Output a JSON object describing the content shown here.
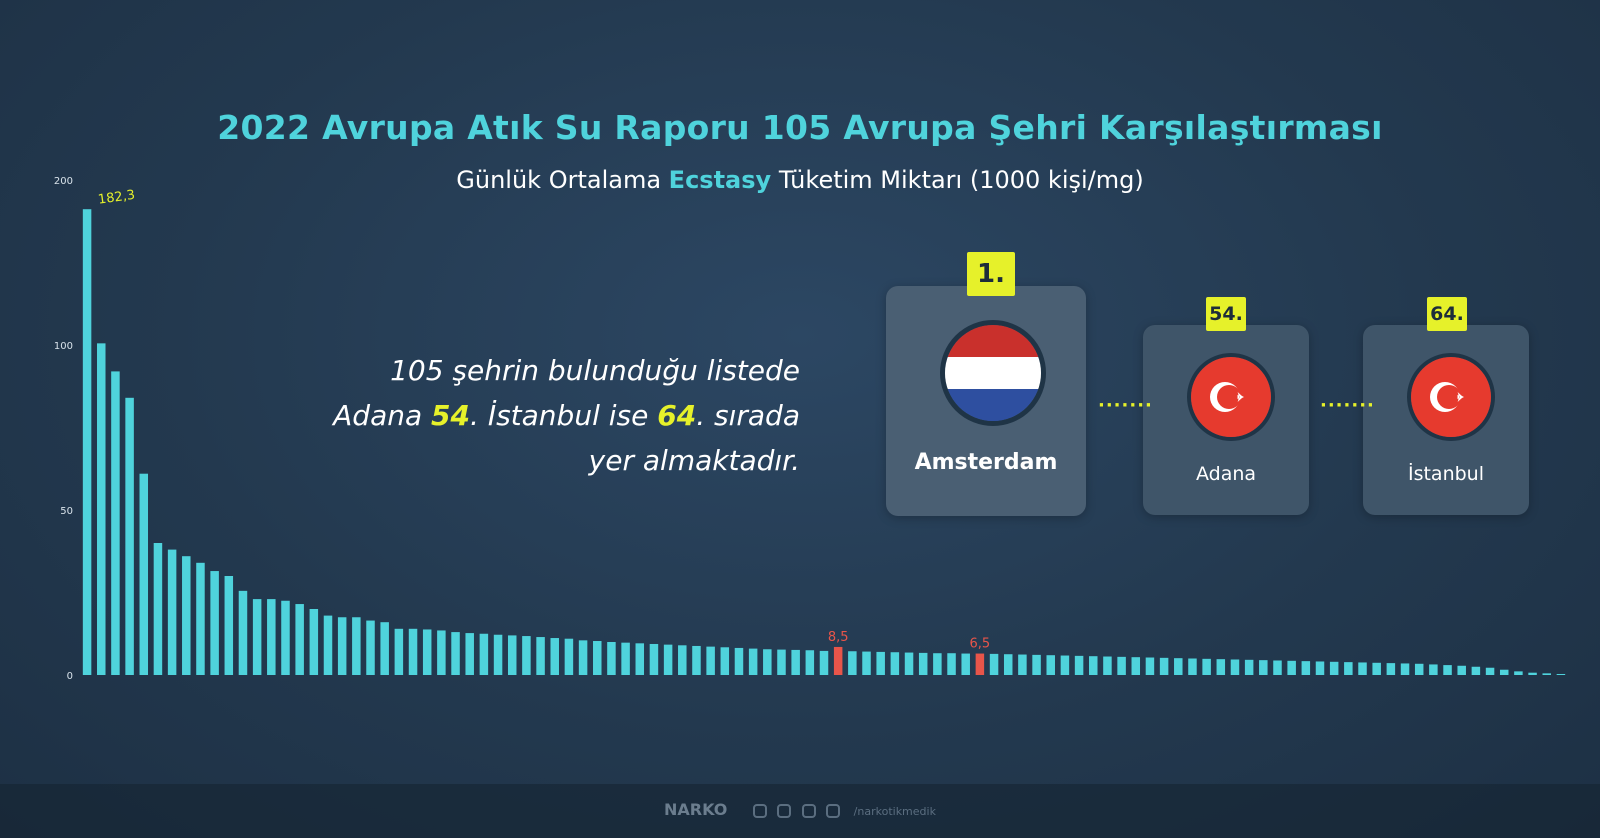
{
  "header": {
    "title": "2022 Avrupa Atık Su Raporu 105 Avrupa Şehri Karşılaştırması",
    "subtitle_pre": "Günlük Ortalama ",
    "subtitle_hl": "Ecstasy",
    "subtitle_post": " Tüketim Miktarı (1000 kişi/mg)"
  },
  "info": {
    "line1": "105 şehrin bulunduğu listede",
    "line2_a": "Adana ",
    "line2_b": "54",
    "line2_c": ". İstanbul ise ",
    "line2_d": "64",
    "line2_e": ". sırada",
    "line3": "yer almaktadır."
  },
  "cards": [
    {
      "rank": "1.",
      "city": "Amsterdam",
      "flag": "netherlands-flag-icon"
    },
    {
      "rank": "54.",
      "city": "Adana",
      "flag": "turkey-flag-icon"
    },
    {
      "rank": "64.",
      "city": "İstanbul",
      "flag": "turkey-flag-icon"
    }
  ],
  "dots": "·······",
  "footer": {
    "logo": "NARKO",
    "handle": "/narkotikmedik"
  },
  "colors": {
    "bar": "#4fd3dc",
    "highlight": "#e8554a",
    "accent_yellow": "#e6f12a",
    "title": "#4fd3dc"
  },
  "chart_data": {
    "type": "bar",
    "ylim": [
      0,
      200
    ],
    "yticks": [
      0,
      50,
      100,
      200
    ],
    "bar_count": 105,
    "values": [
      182.3,
      101,
      92,
      84,
      61,
      40,
      38,
      36,
      34,
      31.5,
      30,
      25.5,
      23,
      23,
      22.5,
      21.5,
      20,
      18,
      17.5,
      17.5,
      16.5,
      16,
      14,
      14,
      13.8,
      13.5,
      13,
      12.7,
      12.5,
      12.2,
      12,
      11.8,
      11.5,
      11.2,
      11,
      10.5,
      10.3,
      10,
      9.8,
      9.6,
      9.4,
      9.2,
      9,
      8.8,
      8.6,
      8.4,
      8.2,
      8,
      7.8,
      7.7,
      7.6,
      7.5,
      7.3,
      8.5,
      7.2,
      7.1,
      7,
      6.9,
      6.8,
      6.7,
      6.6,
      6.6,
      6.5,
      6.5,
      6.4,
      6.3,
      6.2,
      6.1,
      6,
      5.9,
      5.8,
      5.7,
      5.6,
      5.5,
      5.4,
      5.3,
      5.2,
      5.1,
      5,
      4.9,
      4.8,
      4.7,
      4.6,
      4.5,
      4.4,
      4.3,
      4.2,
      4.1,
      4,
      3.9,
      3.8,
      3.7,
      3.6,
      3.5,
      3.4,
      3.2,
      3,
      2.8,
      2.5,
      2.2,
      1.6,
      1.1,
      0.7,
      0.5,
      0.3
    ],
    "highlight_indices": [
      53,
      63
    ],
    "data_labels": [
      {
        "index": 0,
        "text": "182,3"
      },
      {
        "index": 53,
        "text": "8,5"
      },
      {
        "index": 63,
        "text": "6,5"
      }
    ]
  }
}
